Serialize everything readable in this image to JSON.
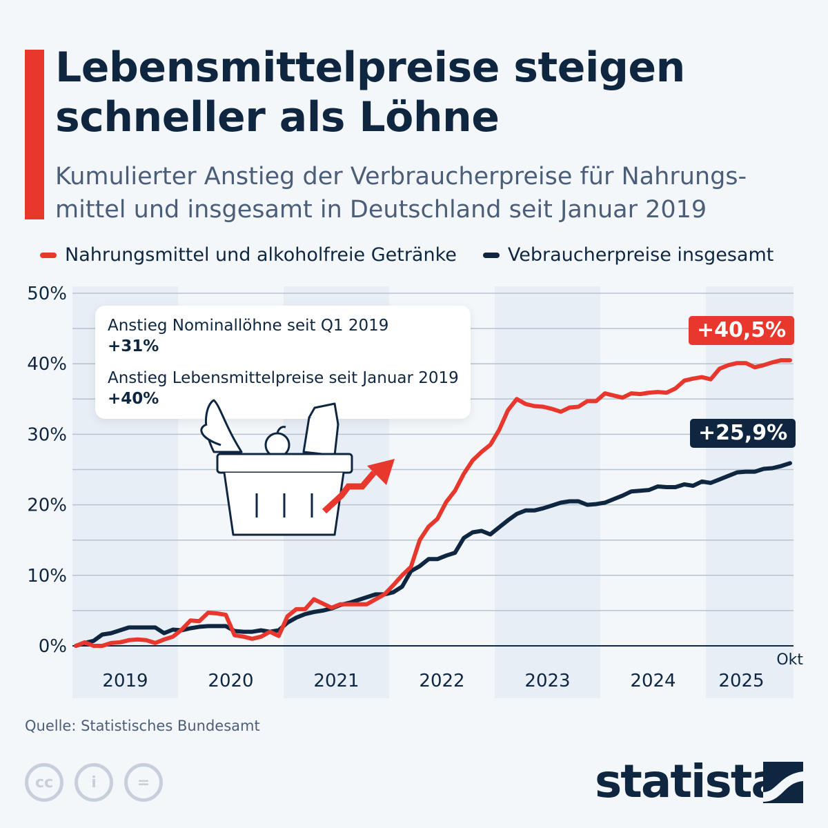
{
  "title": "Lebensmittelpreise steigen schneller als Löhne",
  "subtitle": "Kumulierter Anstieg der Verbraucherpreise für Nahrungs-mittel und insgesamt in Deutschland seit Januar 2019",
  "annotation": {
    "line1": "Anstieg Nominallöhne seit Q1 2019",
    "value1": "+31%",
    "line2": "Anstieg Lebensmittelpreise seit Januar 2019",
    "value2": "+40%"
  },
  "source": "Quelle: Statistisches Bundesamt",
  "brand": "statista",
  "chart_data": {
    "type": "line",
    "x_start": "2019-01",
    "x_end": "2025-10",
    "x_frequency": "monthly",
    "x_tick_labels": [
      "2019",
      "2020",
      "2021",
      "2022",
      "2023",
      "2024",
      "2025"
    ],
    "x_end_label": "Okt",
    "y_tick_labels": [
      "0%",
      "10%",
      "20%",
      "30%",
      "40%",
      "50%"
    ],
    "ylim": [
      0,
      50
    ],
    "grid": true,
    "legend_position": "top",
    "series": [
      {
        "name": "Nahrungsmittel und alkoholfreie Getränke",
        "color": "#e8372c",
        "end_label": "+40,5%",
        "values": [
          0,
          0.5,
          0,
          0,
          0.4,
          0.5,
          0.8,
          0.9,
          0.8,
          0.4,
          0.9,
          1.3,
          2.3,
          3.6,
          3.5,
          4.7,
          4.6,
          4.4,
          1.5,
          1.3,
          1.0,
          1.3,
          2.0,
          1.4,
          4.2,
          5.2,
          5.2,
          6.6,
          6.0,
          5.4,
          5.9,
          5.9,
          5.9,
          5.9,
          6.6,
          7.3,
          8.6,
          10.0,
          11.2,
          15.0,
          16.9,
          18.0,
          20.4,
          22.0,
          24.4,
          26.3,
          27.5,
          28.5,
          30.6,
          33.4,
          35.0,
          34.3,
          34.0,
          33.9,
          33.6,
          33.2,
          33.8,
          33.9,
          34.7,
          34.7,
          35.8,
          35.5,
          35.2,
          35.8,
          35.7,
          35.9,
          36.0,
          35.9,
          36.5,
          37.6,
          37.9,
          38.1,
          37.8,
          39.3,
          39.8,
          40.1,
          40.1,
          39.5,
          39.8,
          40.2,
          40.5,
          40.5
        ]
      },
      {
        "name": "Vebraucherpreise insgesamt",
        "color": "#0f2640",
        "end_label": "+25,9%",
        "values": [
          0,
          0.4,
          0.7,
          1.6,
          1.8,
          2.2,
          2.6,
          2.6,
          2.6,
          2.6,
          1.8,
          2.3,
          2.2,
          2.5,
          2.7,
          2.8,
          2.8,
          2.8,
          2.1,
          2.0,
          2.0,
          2.2,
          2.0,
          2.2,
          3.3,
          4.0,
          4.5,
          4.8,
          5.0,
          5.3,
          5.8,
          6.1,
          6.5,
          6.9,
          7.3,
          7.3,
          7.6,
          8.4,
          10.6,
          11.3,
          12.3,
          12.3,
          12.8,
          13.2,
          15.3,
          16.1,
          16.3,
          15.8,
          16.8,
          17.8,
          18.7,
          19.2,
          19.2,
          19.5,
          19.9,
          20.3,
          20.5,
          20.5,
          20.0,
          20.1,
          20.3,
          20.8,
          21.3,
          21.9,
          22.0,
          22.1,
          22.6,
          22.5,
          22.5,
          22.9,
          22.7,
          23.3,
          23.1,
          23.6,
          24.1,
          24.6,
          24.7,
          24.7,
          25.1,
          25.2,
          25.5,
          25.9
        ]
      }
    ]
  }
}
